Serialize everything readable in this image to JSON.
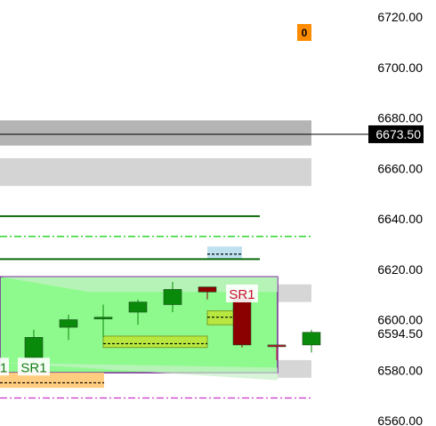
{
  "chart_data": {
    "type": "candlestick",
    "y_axis": {
      "ticks": [
        "6720.00",
        "6700.00",
        "6680.00",
        "6660.00",
        "6640.00",
        "6620.00",
        "6600.00",
        "6580.00",
        "6560.00"
      ],
      "range": [
        6557,
        6727
      ]
    },
    "last_price": {
      "label": "6673.50",
      "value": 6673.5
    },
    "current_price_label": {
      "label": "6594.50",
      "value": 6594.5
    },
    "order_badge": {
      "label": "0",
      "color": "#ff8c00"
    },
    "sr_labels": [
      {
        "text": "SR1",
        "color": "#c8102e"
      },
      {
        "text": "SR1",
        "color": "#1a7a1a"
      },
      {
        "text": "1",
        "color": "#1a7a1a"
      }
    ],
    "zones": [
      {
        "name": "gray-zone-upper",
        "low": 6669,
        "high": 6679,
        "color": "#b4b4b4"
      },
      {
        "name": "gray-zone-lower",
        "low": 6653,
        "high": 6664,
        "color": "#d4d4d4"
      },
      {
        "name": "gray-zone-right",
        "low": 6607,
        "high": 6614,
        "color": "#d6d6d6"
      },
      {
        "name": "gray-zone-bottom",
        "low": 6577,
        "high": 6584,
        "color": "#d6d6d6"
      },
      {
        "name": "support-zone",
        "low": 6579,
        "high": 6617,
        "color": "#8efa8e"
      },
      {
        "name": "blue-zone",
        "low": 6624,
        "high": 6629,
        "color": "#bfe0ee"
      },
      {
        "name": "orange-zone",
        "low": 6573,
        "high": 6579,
        "color": "#ffcc80"
      }
    ],
    "levels": [
      {
        "name": "green-level-1",
        "value": 6641,
        "color": "#0a6a0a",
        "style": "solid"
      },
      {
        "name": "green-dash-level",
        "value": 6633,
        "color": "#00cc00",
        "style": "dashdot"
      },
      {
        "name": "green-level-2",
        "value": 6624,
        "color": "#0a6a0a",
        "style": "solid"
      },
      {
        "name": "magenta-dash-level",
        "value": 6569,
        "color": "#cc33cc",
        "style": "dashdot"
      }
    ],
    "candles": [
      {
        "open": 6585,
        "high": 6596,
        "low": 6582,
        "close": 6593,
        "color": "#0a8a0a"
      },
      {
        "open": 6597,
        "high": 6602,
        "low": 6592,
        "close": 6600,
        "color": "#0a8a0a"
      },
      {
        "open": 6601,
        "high": 6606,
        "low": 6593,
        "close": 6601,
        "color": "#0a8a0a"
      },
      {
        "open": 6603,
        "high": 6608,
        "low": 6598,
        "close": 6607,
        "color": "#0a8a0a"
      },
      {
        "open": 6606,
        "high": 6615,
        "low": 6603,
        "close": 6612,
        "color": "#0a8a0a"
      },
      {
        "open": 6611,
        "high": 6613,
        "low": 6608,
        "close": 6613,
        "color": "#8b0000"
      },
      {
        "open": 6609,
        "high": 6609,
        "low": 6589,
        "close": 6590,
        "color": "#8b0000"
      },
      {
        "open": 6590,
        "high": 6590,
        "low": 6584,
        "close": 6590,
        "color": "#c8102e"
      },
      {
        "open": 6590,
        "high": 6596,
        "low": 6587,
        "close": 6595,
        "color": "#0a8a0a"
      }
    ]
  }
}
